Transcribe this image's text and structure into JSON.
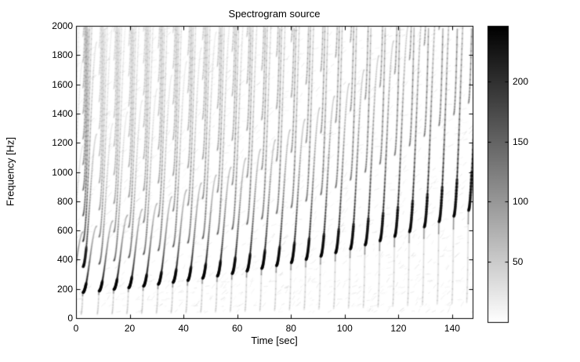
{
  "figure": {
    "background": "#ffffff",
    "ink": "#000000"
  },
  "chart_data": {
    "type": "heatmap",
    "title": "Spectrogram source",
    "xlabel": "Time [sec]",
    "ylabel": "Frequency [Hz]",
    "x_range": [
      0,
      147.6
    ],
    "y_range": [
      0,
      2000
    ],
    "x_ticks": [
      0,
      20,
      40,
      60,
      80,
      100,
      120,
      140
    ],
    "y_ticks": [
      0,
      200,
      400,
      600,
      800,
      1000,
      1200,
      1400,
      1600,
      1800,
      2000
    ],
    "grid": false,
    "colormap": "reversed-gray (white=0, black=max)",
    "colorbar": {
      "position": "right",
      "range": [
        0,
        246
      ],
      "ticks": [
        50,
        100,
        150,
        200
      ]
    },
    "description": "Repeated upward-sweeping chirp events about 5.5 s apart. Each event: faint fast lead-in, dark fundamental blob, S-curve sweep up to ~3.6x start frequency with fading amplitude, plus fan of fainter harmonics and a faint broadband noise column. Fundamental start frequency rises roughly exponentially from ~175 Hz (t=2.5 s) to ~735 Hz (t=146 s).",
    "events": [
      {
        "t": -2.6,
        "f0": 164
      },
      {
        "t": 2.5,
        "f0": 175,
        "boost": 1.9
      },
      {
        "t": 8.5,
        "f0": 185
      },
      {
        "t": 14,
        "f0": 196
      },
      {
        "t": 19.5,
        "f0": 207
      },
      {
        "t": 25,
        "f0": 218
      },
      {
        "t": 30.5,
        "f0": 231
      },
      {
        "t": 36,
        "f0": 244
      },
      {
        "t": 41.5,
        "f0": 257
      },
      {
        "t": 47,
        "f0": 272
      },
      {
        "t": 52.5,
        "f0": 287
      },
      {
        "t": 58,
        "f0": 304
      },
      {
        "t": 63.5,
        "f0": 321
      },
      {
        "t": 69,
        "f0": 339
      },
      {
        "t": 74.5,
        "f0": 358
      },
      {
        "t": 80,
        "f0": 378
      },
      {
        "t": 85.5,
        "f0": 400
      },
      {
        "t": 91,
        "f0": 422
      },
      {
        "t": 96.5,
        "f0": 446
      },
      {
        "t": 102,
        "f0": 472
      },
      {
        "t": 107.5,
        "f0": 499
      },
      {
        "t": 113,
        "f0": 527
      },
      {
        "t": 118.5,
        "f0": 557
      },
      {
        "t": 124,
        "f0": 589
      },
      {
        "t": 129.5,
        "f0": 622
      },
      {
        "t": 135,
        "f0": 658
      },
      {
        "t": 140.5,
        "f0": 695
      },
      {
        "t": 146,
        "f0": 735
      }
    ],
    "sweep_model": {
      "duration_sec": 5.3,
      "end_ratio": 3.6,
      "blob_span_sec": [
        0.15,
        1.35
      ],
      "lead_in_sec": 0.6,
      "fade_tau_sec": 1.5
    },
    "harmonic_amplitudes": [
      1.0,
      0.4,
      0.3,
      0.24,
      0.19,
      0.155,
      0.13,
      0.11,
      0.095,
      0.082,
      0.072,
      0.063
    ]
  }
}
